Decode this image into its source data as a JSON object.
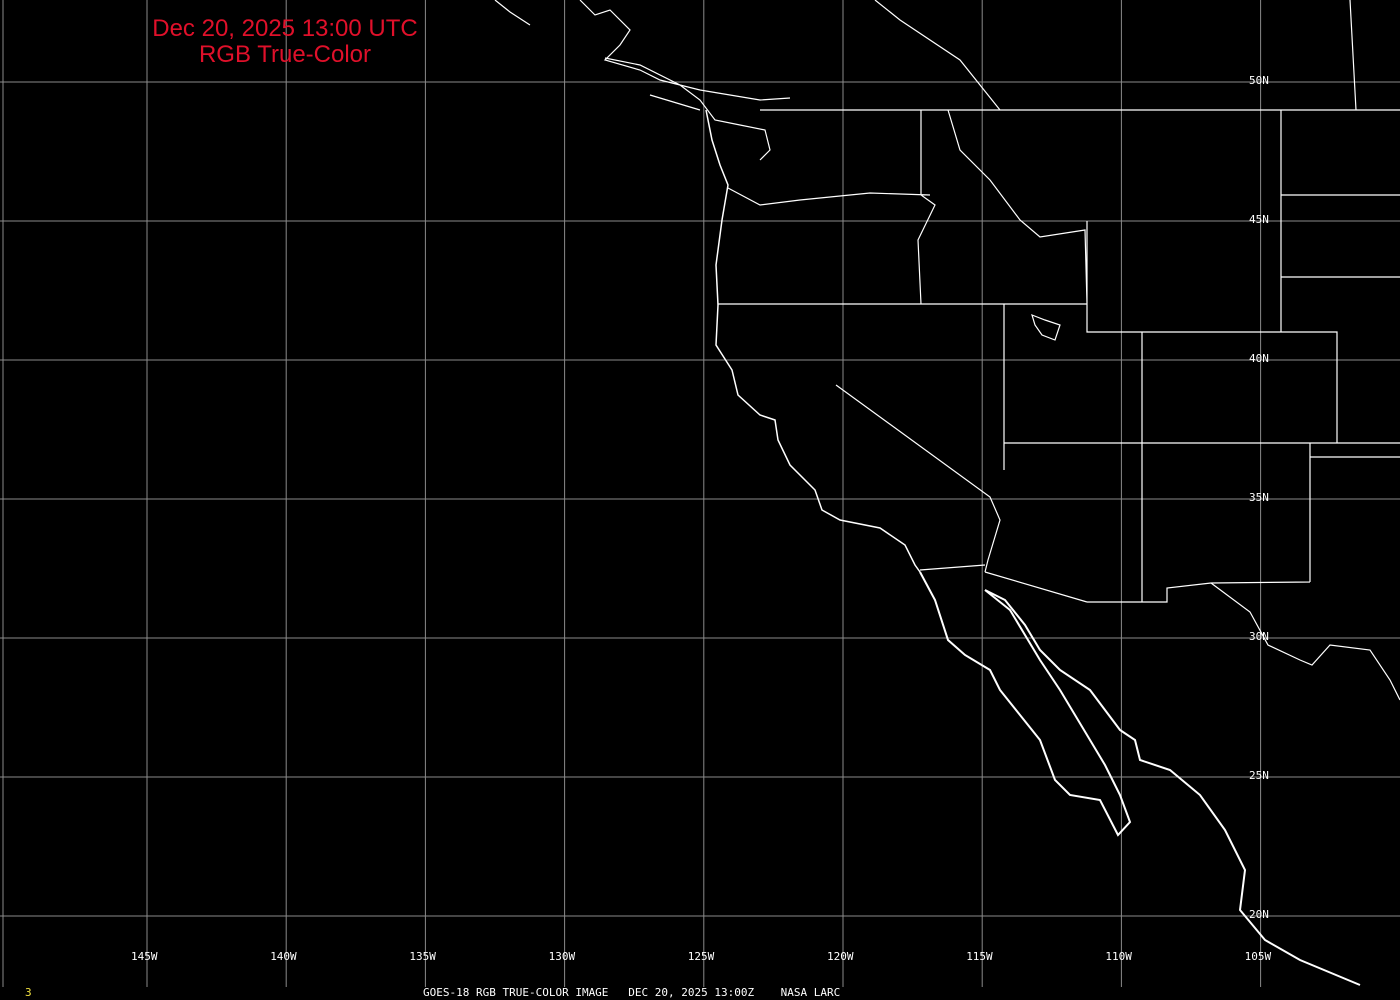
{
  "title": {
    "line1": "Dec 20, 2025 13:00 UTC",
    "line2": "RGB True-Color",
    "color": "#e0102a"
  },
  "grid": {
    "longitudes": [
      "145W",
      "140W",
      "135W",
      "130W",
      "125W",
      "120W",
      "115W",
      "110W",
      "105W"
    ],
    "latitudes": [
      "50N",
      "45N",
      "40N",
      "35N",
      "30N",
      "25N",
      "20N"
    ]
  },
  "footer": {
    "frame_number": "3",
    "caption": "GOES-18 RGB TRUE-COLOR IMAGE   DEC 20, 2025 13:00Z    NASA LARC"
  }
}
